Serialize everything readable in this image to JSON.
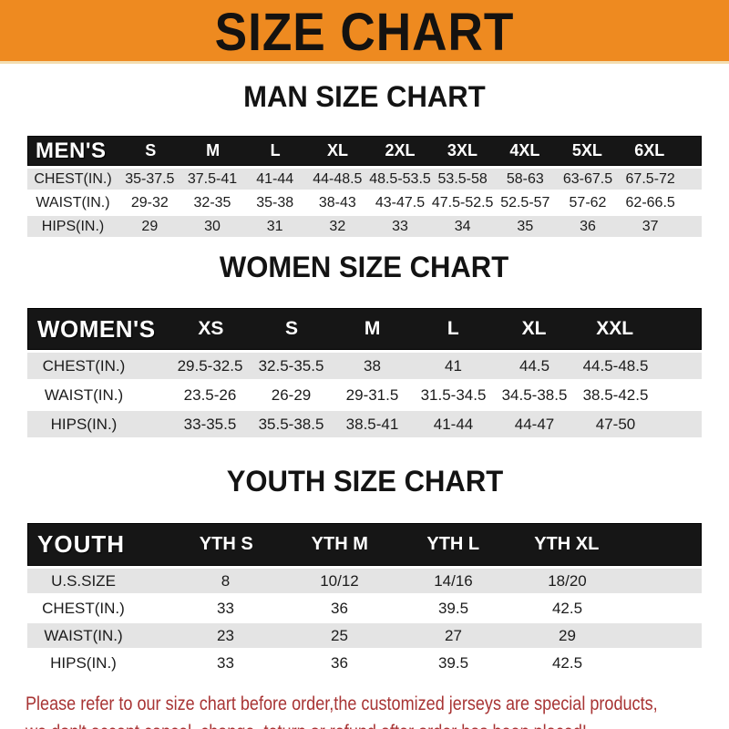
{
  "banner": {
    "title": "SIZE CHART"
  },
  "colors": {
    "banner_orange": "#EE8A20",
    "table_bar_black": "#161616",
    "row_gray": "#E4E4E4",
    "note_red": "#A83434"
  },
  "sections": [
    {
      "heading": "MAN SIZE CHART",
      "table": {
        "header_label": "MEN'S",
        "columns": [
          "S",
          "M",
          "L",
          "XL",
          "2XL",
          "3XL",
          "4XL",
          "5XL",
          "6XL"
        ],
        "rows": [
          {
            "label": "CHEST(IN.)",
            "values": [
              "35-37.5",
              "37.5-41",
              "41-44",
              "44-48.5",
              "48.5-53.5",
              "53.5-58",
              "58-63",
              "63-67.5",
              "67.5-72"
            ]
          },
          {
            "label": "WAIST(IN.)",
            "values": [
              "29-32",
              "32-35",
              "35-38",
              "38-43",
              "43-47.5",
              "47.5-52.5",
              "52.5-57",
              "57-62",
              "62-66.5"
            ]
          },
          {
            "label": "HIPS(IN.)",
            "values": [
              "29",
              "30",
              "31",
              "32",
              "33",
              "34",
              "35",
              "36",
              "37"
            ]
          }
        ]
      }
    },
    {
      "heading": "WOMEN SIZE CHART",
      "table": {
        "header_label": "WOMEN'S",
        "columns": [
          "XS",
          "S",
          "M",
          "L",
          "XL",
          "XXL"
        ],
        "rows": [
          {
            "label": "CHEST(IN.)",
            "values": [
              "29.5-32.5",
              "32.5-35.5",
              "38",
              "41",
              "44.5",
              "44.5-48.5"
            ]
          },
          {
            "label": "WAIST(IN.)",
            "values": [
              "23.5-26",
              "26-29",
              "29-31.5",
              "31.5-34.5",
              "34.5-38.5",
              "38.5-42.5"
            ]
          },
          {
            "label": "HIPS(IN.)",
            "values": [
              "33-35.5",
              "35.5-38.5",
              "38.5-41",
              "41-44",
              "44-47",
              "47-50"
            ]
          }
        ]
      }
    },
    {
      "heading": "YOUTH SIZE CHART",
      "table": {
        "header_label": "YOUTH",
        "columns": [
          "YTH S",
          "YTH M",
          "YTH L",
          "YTH XL"
        ],
        "rows": [
          {
            "label": "U.S.SIZE",
            "values": [
              "8",
              "10/12",
              "14/16",
              "18/20"
            ]
          },
          {
            "label": "CHEST(IN.)",
            "values": [
              "33",
              "36",
              "39.5",
              "42.5"
            ]
          },
          {
            "label": "WAIST(IN.)",
            "values": [
              "23",
              "25",
              "27",
              "29"
            ]
          },
          {
            "label": "HIPS(IN.)",
            "values": [
              "33",
              "36",
              "39.5",
              "42.5"
            ]
          }
        ]
      }
    }
  ],
  "footer": {
    "line1": "Please refer to our size chart before order,the customized jerseys are special products,",
    "line2": "we don't accept cancel, change, teturn or refund after order has been placed!"
  }
}
